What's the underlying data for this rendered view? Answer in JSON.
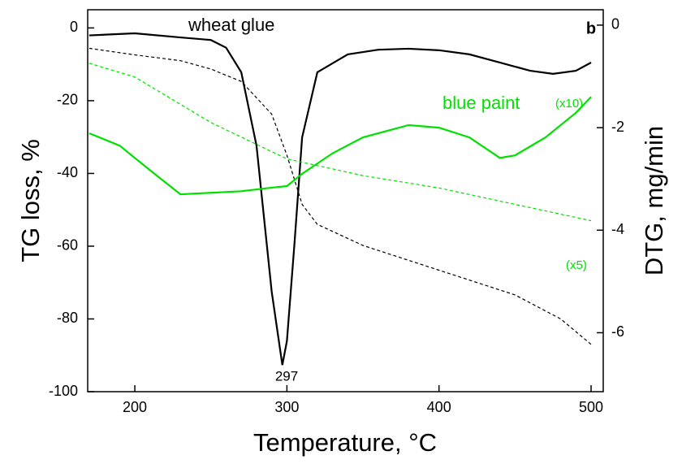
{
  "chart_data": {
    "type": "line",
    "title": "b",
    "x_label": "Temperature, °C",
    "y_label": "TG loss, %",
    "y2_label": "DTG, mg/min",
    "xlim": [
      169,
      508
    ],
    "xticks": [
      200,
      300,
      400,
      500
    ],
    "ylim": [
      -100,
      5
    ],
    "yticks": [
      -100,
      -80,
      -60,
      -40,
      -20,
      0
    ],
    "y2lim": [
      -7.15,
      0.3
    ],
    "y2ticks": [
      -6,
      -4,
      -2,
      0
    ],
    "series": [
      {
        "color": "#000000",
        "style": "solid",
        "axis": "y2",
        "x": [
          170,
          200,
          230,
          250,
          260,
          270,
          280,
          290,
          297,
          300,
          305,
          310,
          320,
          340,
          360,
          380,
          400,
          420,
          440,
          460,
          475,
          490,
          500
        ],
        "values": [
          -0.2,
          -0.16,
          -0.24,
          -0.29,
          -0.44,
          -0.92,
          -2.35,
          -5.2,
          -6.63,
          -6.16,
          -4.25,
          -2.19,
          -0.92,
          -0.57,
          -0.48,
          -0.46,
          -0.49,
          -0.57,
          -0.73,
          -0.89,
          -0.95,
          -0.89,
          -0.73
        ]
      },
      {
        "color": "#000000",
        "style": "dashed",
        "axis": "y",
        "x": [
          170,
          200,
          230,
          250,
          270,
          290,
          300,
          310,
          320,
          350,
          400,
          450,
          480,
          500
        ],
        "values": [
          -5.6,
          -7.4,
          -9,
          -11.3,
          -14.7,
          -23.7,
          -35,
          -48.5,
          -54,
          -59.8,
          -66.6,
          -73.4,
          -80,
          -87
        ]
      },
      {
        "color": "#00e000",
        "style": "solid",
        "axis": "y2",
        "x": [
          170,
          190,
          210,
          230,
          250,
          270,
          290,
          300,
          310,
          330,
          350,
          380,
          400,
          420,
          440,
          450,
          470,
          490,
          500
        ],
        "values": [
          -2.11,
          -2.35,
          -2.83,
          -3.3,
          -3.27,
          -3.24,
          -3.17,
          -3.14,
          -2.9,
          -2.5,
          -2.19,
          -1.95,
          -2.0,
          -2.19,
          -2.59,
          -2.54,
          -2.19,
          -1.71,
          -1.4
        ]
      },
      {
        "color": "#00e000",
        "style": "dashed",
        "axis": "y",
        "x": [
          170,
          200,
          250,
          300,
          350,
          400,
          450,
          500
        ],
        "values": [
          -9.7,
          -13.5,
          -26,
          -36,
          -40.6,
          -44,
          -48.5,
          -53
        ]
      }
    ],
    "annotations": [
      {
        "text": "wheat glue",
        "color": "#000000"
      },
      {
        "text": "blue paint",
        "color": "#00e000"
      },
      {
        "text": "(x10)",
        "color": "#00e000"
      },
      {
        "text": "(x5)",
        "color": "#00e000"
      },
      {
        "text": "297",
        "color": "#000000"
      }
    ]
  }
}
